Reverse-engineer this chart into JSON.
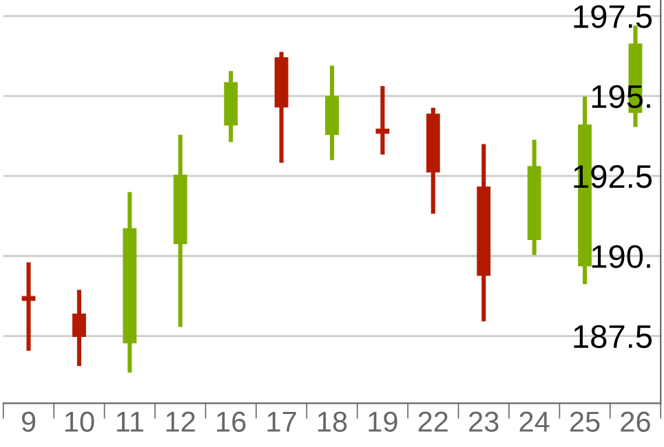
{
  "chart_data": {
    "type": "candlestick",
    "categories": [
      "9",
      "10",
      "11",
      "12",
      "16",
      "17",
      "18",
      "19",
      "22",
      "23",
      "24",
      "25",
      "26"
    ],
    "ohlc": [
      [
        188.75,
        189.8,
        187.04,
        188.6
      ],
      [
        188.2,
        188.94,
        186.56,
        187.47
      ],
      [
        187.27,
        192.0,
        186.36,
        190.87
      ],
      [
        190.37,
        193.79,
        187.78,
        192.54
      ],
      [
        194.08,
        195.78,
        193.56,
        195.43
      ],
      [
        196.21,
        196.38,
        192.91,
        194.64
      ],
      [
        193.78,
        195.95,
        193.0,
        195.0
      ],
      [
        193.98,
        195.31,
        193.17,
        193.82
      ],
      [
        194.45,
        194.63,
        191.32,
        192.61
      ],
      [
        192.17,
        193.5,
        187.96,
        189.38
      ],
      [
        190.5,
        193.63,
        190.03,
        192.81
      ],
      [
        189.68,
        194.98,
        189.12,
        194.11
      ],
      [
        194.47,
        197.2,
        194.03,
        196.64
      ]
    ],
    "colors": [
      "#b31b00",
      "#b31b00",
      "#7fb000",
      "#7fb000",
      "#7fb000",
      "#b31b00",
      "#7fb000",
      "#b31b00",
      "#b31b00",
      "#b31b00",
      "#7fb000",
      "#7fb000",
      "#7fb000"
    ],
    "ylim": [
      185.4,
      198.0
    ],
    "yticks": [
      {
        "value": 187.5,
        "label": "187.5"
      },
      {
        "value": 190,
        "label": "190."
      },
      {
        "value": 192.5,
        "label": "192.5"
      },
      {
        "value": 195,
        "label": "195."
      },
      {
        "value": 197.5,
        "label": "197.5"
      }
    ],
    "grid": "y"
  }
}
